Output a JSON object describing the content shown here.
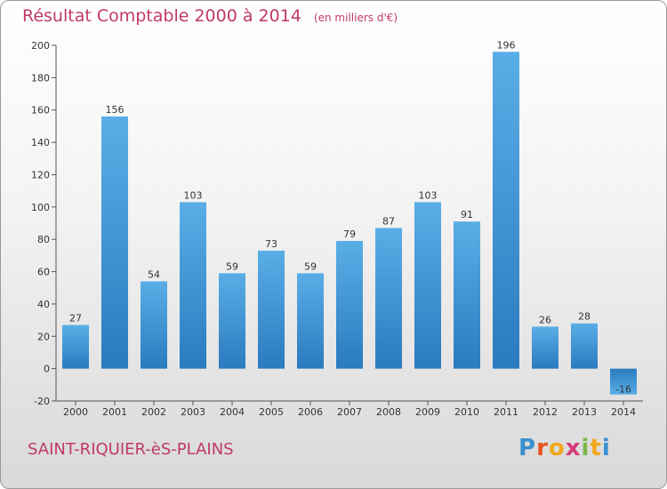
{
  "header": {
    "title": "Résultat Comptable 2000 à 2014",
    "subtitle": "(en milliers d'€)"
  },
  "footer": {
    "place": "SAINT-RIQUIER-èS-PLAINS"
  },
  "logo": {
    "text": "Proxiti"
  },
  "colors": {
    "accent": "#c0396b",
    "bar_top": "#5aaee6",
    "bar_bottom": "#2a7bbf"
  },
  "chart_data": {
    "type": "bar",
    "title": "Résultat Comptable 2000 à 2014",
    "subtitle": "(en milliers d'€)",
    "categories": [
      "2000",
      "2001",
      "2002",
      "2003",
      "2004",
      "2005",
      "2006",
      "2007",
      "2008",
      "2009",
      "2010",
      "2011",
      "2012",
      "2013",
      "2014"
    ],
    "values": [
      27,
      156,
      54,
      103,
      59,
      73,
      59,
      79,
      87,
      103,
      91,
      196,
      26,
      28,
      -16
    ],
    "xlabel": "",
    "ylabel": "",
    "ylim": [
      -20,
      200
    ],
    "yticks": [
      -20,
      0,
      20,
      40,
      60,
      80,
      100,
      120,
      140,
      160,
      180,
      200
    ],
    "grid": false
  }
}
